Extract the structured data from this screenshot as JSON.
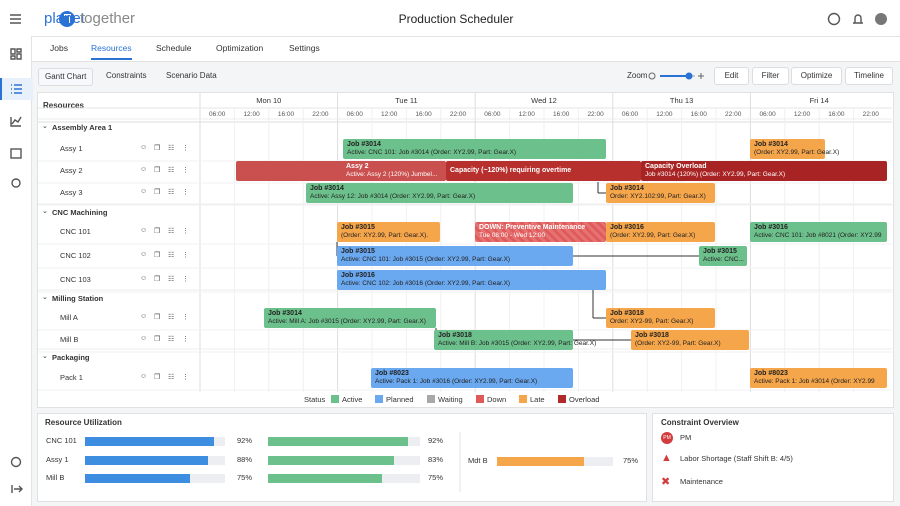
{
  "header": {
    "logo_left": "planet",
    "logo_right": "together",
    "title": "Production Scheduler"
  },
  "nav": {
    "tabs": [
      "Jobs",
      "Resources",
      "Schedule",
      "Optimization",
      "Settings"
    ],
    "active": 1
  },
  "toolbar": {
    "tabs": [
      "Gantt Chart",
      "Constraints",
      "Scenario Data"
    ],
    "active": 0,
    "zoom_label": "Zoom",
    "buttons": [
      "Edit",
      "Filter",
      "Optimize",
      "Timeline"
    ]
  },
  "gantt": {
    "resources_label": "Resources",
    "days": [
      {
        "label": "Mon 10",
        "hours": [
          "06:00",
          "12:00",
          "16:00",
          "22:00"
        ]
      },
      {
        "label": "Tue 11",
        "hours": [
          "06:00",
          "12:00",
          "16:00",
          "22:00"
        ]
      },
      {
        "label": "Wed 12",
        "hours": [
          "06:00",
          "12:00",
          "16:00",
          "22:00"
        ]
      },
      {
        "label": "Thu 13",
        "hours": [
          "06:00",
          "12:00",
          "16:00",
          "22:00"
        ]
      },
      {
        "label": "Fri 14",
        "hours": [
          "06:00",
          "12:00",
          "16:00",
          "22:00"
        ]
      }
    ],
    "groups": [
      {
        "name": "Assembly Area 1",
        "resources": [
          {
            "name": "Assy 1",
            "bars": [
              {
                "title": "Job #3014",
                "detail": "Active: CNC 101: Job #3014 (Order: XY2.99, Part: Gear.X)",
                "color": "#6cc08b"
              },
              {
                "title": "Job #3014",
                "detail": "(Order: XY2.99, Part: Gear.X)",
                "color": "#f5a54a"
              }
            ]
          },
          {
            "name": "Assy 2",
            "bars": [
              {
                "title": "Assy 2",
                "detail": "Active: Assy 2 (120%) Jumbel...",
                "color": "#c9504f"
              },
              {
                "title": "Capacity (~120%) requiring overtime",
                "color": "#b8302e"
              },
              {
                "title": "Capacity Overload",
                "detail": "Job #3014 (120%) (Order: XY2.99, Part: Gear.X)",
                "color": "#a82424"
              }
            ]
          },
          {
            "name": "Assy 3",
            "bars": [
              {
                "title": "Job #3014",
                "detail": "Active: Assy 12: Job #3014 (Order: XY2.99, Part: Gear.X)",
                "color": "#6cc08b"
              },
              {
                "title": "Job #3014",
                "detail": "Order: XY2.102:99, Part: Gear.X)",
                "color": "#f5a54a"
              }
            ]
          }
        ]
      },
      {
        "name": "CNC Machining",
        "resources": [
          {
            "name": "CNC 101",
            "bars": [
              {
                "title": "Job #3015",
                "detail": "(Order: XY2.99, Part: Gear.X).",
                "color": "#f5a54a"
              },
              {
                "title": "DOWN: Preventive Maintenance",
                "detail": "Tue 08:00 - Wed 12:00",
                "color": "#e05a5a"
              },
              {
                "title": "Job #3016",
                "detail": "(Order: XY2.99, Part: Gear.X)",
                "color": "#f5a54a"
              },
              {
                "title": "Job #3016",
                "detail": "Active: CNC 101: Job #8021 (Order: XY2.99",
                "color": "#6cc08b"
              }
            ]
          },
          {
            "name": "CNC 102",
            "bars": [
              {
                "title": "Job #3015",
                "detail": "Active: CNC 101: Job #3015 (Order: XY2.99, Part: Gear.X)",
                "color": "#6aa8ef"
              },
              {
                "title": "Job #3015",
                "detail": "Active: CNC...",
                "color": "#6cc08b"
              }
            ]
          },
          {
            "name": "CNC 103",
            "bars": [
              {
                "title": "Job #3016",
                "detail": "Active: CNC 102: Job #3016 (Order: XY2.99, Part: Gear.X)",
                "color": "#6aa8ef"
              }
            ]
          }
        ]
      },
      {
        "name": "Milling Station",
        "resources": [
          {
            "name": "Mill A",
            "bars": [
              {
                "title": "Job #3014",
                "detail": "Active: Mill A: Job #3015 (Order: XY2.99, Part: Gear.X)",
                "color": "#6cc08b"
              },
              {
                "title": "Job #3018",
                "detail": "Order: XY2-99, Part: Gear.X)",
                "color": "#f5a54a"
              }
            ]
          },
          {
            "name": "Mill B",
            "bars": [
              {
                "title": "Job #3018",
                "detail": "Active: Mill B: Job #3015 (Order: XY2.99, Part: Gear.X)",
                "color": "#6cc08b"
              },
              {
                "title": "Job #3018",
                "detail": "(Order: XY2-99, Part: Gear.X)",
                "color": "#f5a54a"
              }
            ]
          }
        ]
      },
      {
        "name": "Packaging",
        "resources": [
          {
            "name": "Pack 1",
            "bars": [
              {
                "title": "Job #8023",
                "detail": "Active: Pack 1: Job #3016 (Order: XY2.99, Part: Gear.X)",
                "color": "#6aa8ef"
              },
              {
                "title": "Job #8023",
                "detail": "Active: Pack 1: Job #3014 (Order: XY2.99",
                "color": "#f5a54a"
              }
            ]
          }
        ]
      }
    ],
    "legend": {
      "label": "Status",
      "items": [
        {
          "name": "Active",
          "color": "#6cc08b"
        },
        {
          "name": "Planned",
          "color": "#6aa8ef"
        },
        {
          "name": "Waiting",
          "color": "#a8a8a8"
        },
        {
          "name": "Down",
          "color": "#e05a5a"
        },
        {
          "name": "Late",
          "color": "#f5a54a"
        },
        {
          "name": "Overload",
          "color": "#b02a2a"
        }
      ]
    }
  },
  "utilization": {
    "title": "Resource Utilization",
    "colors": [
      "#3d8ee0",
      "#6cc08b"
    ],
    "rows": [
      {
        "name": "CNC 101",
        "values": [
          92,
          92
        ],
        "value_labels": [
          "92%",
          "92%"
        ]
      },
      {
        "name": "Assy 1",
        "values": [
          88,
          83
        ],
        "value_labels": [
          "88%",
          "83%"
        ]
      },
      {
        "name": "Mill B",
        "values": [
          75,
          75
        ],
        "value_labels": [
          "75%",
          "75%"
        ]
      }
    ],
    "extra": {
      "name": "Mdt B",
      "value": 75,
      "value_label": "75%",
      "color": "#f5a54a"
    }
  },
  "constraints": {
    "title": "Constraint Overview",
    "items": [
      {
        "icon": "PM",
        "label": "PM"
      },
      {
        "label": "Labor Shortage (Staff Shift B: 4/5)"
      },
      {
        "label": "Maintenance"
      }
    ]
  }
}
